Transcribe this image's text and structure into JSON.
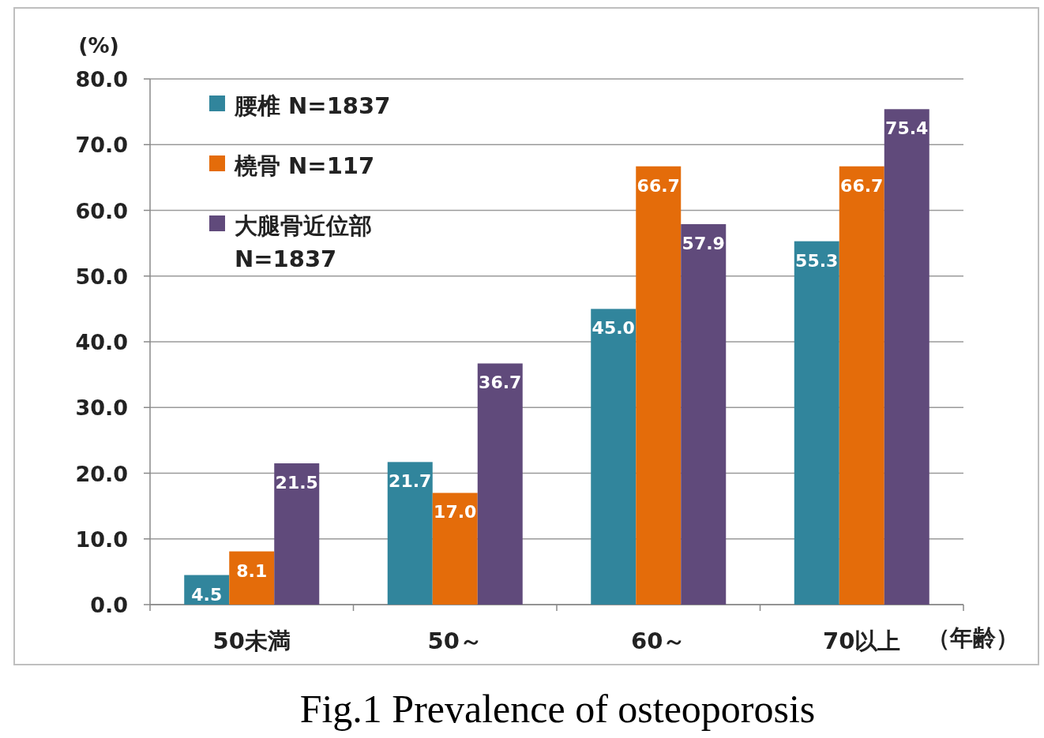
{
  "chart_data": {
    "type": "bar",
    "title": "Fig.1 Prevalence of osteoporosis",
    "ylabel": "(%)",
    "xlabel": "（年齢）",
    "categories": [
      "50未満",
      "50～",
      "60～",
      "70以上"
    ],
    "series": [
      {
        "name": "腰椎 N=1837",
        "color": "#31859c",
        "values": [
          4.5,
          21.7,
          45.0,
          55.3
        ],
        "value_labels": [
          "4.5",
          "21.7",
          "45.0",
          "55.3"
        ]
      },
      {
        "name": "橈骨 N=117",
        "color": "#e46c0a",
        "values": [
          8.1,
          17.0,
          66.7,
          66.7
        ],
        "value_labels": [
          "8.1",
          "17.0",
          "66.7",
          "66.7"
        ]
      },
      {
        "name": "大腿骨近位部 N=1837",
        "color": "#604a7b",
        "values": [
          21.5,
          36.7,
          57.9,
          75.4
        ],
        "value_labels": [
          "21.5",
          "36.7",
          "57.9",
          "75.4"
        ]
      }
    ],
    "ylim": [
      0,
      80
    ],
    "yticks": [
      {
        "value": 0,
        "label": "0.0"
      },
      {
        "value": 10,
        "label": "10.0"
      },
      {
        "value": 20,
        "label": "20.0"
      },
      {
        "value": 30,
        "label": "30.0"
      },
      {
        "value": 40,
        "label": "40.0"
      },
      {
        "value": 50,
        "label": "50.0"
      },
      {
        "value": 60,
        "label": "60.0"
      },
      {
        "value": 70,
        "label": "70.0"
      },
      {
        "value": 80,
        "label": "80.0"
      }
    ],
    "grid": "y",
    "legend": "top left"
  }
}
